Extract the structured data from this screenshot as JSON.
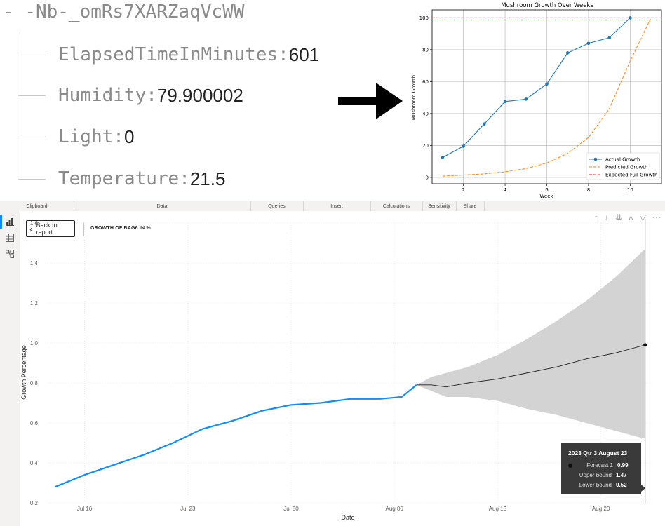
{
  "tree": {
    "root_key": "-Nb-_omRs7XARZaqVcWW",
    "rows": [
      {
        "key": "ElapsedTimeInMinutes",
        "value": "601"
      },
      {
        "key": "Humidity",
        "value": "79.900002"
      },
      {
        "key": "Light",
        "value": "0"
      },
      {
        "key": "Temperature",
        "value": "21.5"
      }
    ]
  },
  "ribbon": {
    "groups": [
      "Clipboard",
      "Data",
      "Queries",
      "Insert",
      "Calculations",
      "Sensitivity",
      "Share"
    ]
  },
  "report": {
    "back_label": "Back to report",
    "visual_title": "GROWTH OF BAG6 IN %",
    "tooltip": {
      "title": "2023 Qtr 3 August 23",
      "rows": [
        {
          "label": "Forecast 1",
          "value": "0.99"
        },
        {
          "label": "Upper bound",
          "value": "1.47"
        },
        {
          "label": "Lower bound",
          "value": "0.52"
        }
      ]
    }
  },
  "colors": {
    "actual_line": "#1f77b4",
    "predicted_line": "#ff7f0e",
    "expected_line": "#d62728",
    "pbi_line": "#118dff",
    "forecast_band": "#d3d3d3"
  },
  "chart_data": [
    {
      "type": "line",
      "title": "Mushroom Growth Over Weeks",
      "xlabel": "Week",
      "ylabel": "Mushroom Growth",
      "xlim": [
        0.5,
        11.5
      ],
      "ylim": [
        -4,
        105
      ],
      "xticks": [
        2,
        4,
        6,
        8,
        10
      ],
      "yticks": [
        0,
        20,
        40,
        60,
        80,
        100
      ],
      "grid": true,
      "legend": "bottom-right",
      "series": [
        {
          "name": "Actual Growth",
          "style": "solid-markers",
          "x": [
            1,
            2,
            3,
            4,
            5,
            6,
            7,
            8,
            9,
            10
          ],
          "y": [
            12.5,
            19.5,
            33.5,
            47.5,
            49,
            58.5,
            78,
            84,
            87.5,
            100
          ]
        },
        {
          "name": "Predicted Growth",
          "style": "dashed",
          "x": [
            1,
            2,
            3,
            4,
            5,
            6,
            7,
            8,
            9,
            10,
            11
          ],
          "y": [
            0.8,
            1.5,
            2.2,
            3.5,
            5.5,
            9,
            15,
            25,
            43,
            73,
            100
          ]
        },
        {
          "name": "Expected Full Growth",
          "style": "dashed-horizontal",
          "y": 100
        }
      ]
    },
    {
      "type": "line",
      "title": "GROWTH OF BAG6 IN %",
      "xlabel": "Date",
      "ylabel": "Growth Percentage",
      "ylim": [
        0.2,
        1.6
      ],
      "yticks": [
        0.2,
        0.4,
        0.6,
        0.8,
        1.0,
        1.2,
        1.4,
        1.6
      ],
      "xticks": [
        {
          "day": 2,
          "label": "Jul 16"
        },
        {
          "day": 9,
          "label": "Jul 23"
        },
        {
          "day": 16,
          "label": "Jul 30"
        },
        {
          "day": 23,
          "label": "Aug 06"
        },
        {
          "day": 30,
          "label": "Aug 13"
        },
        {
          "day": 37,
          "label": "Aug 20"
        }
      ],
      "xlim": [
        -0.5,
        40.3
      ],
      "actual": {
        "day": [
          0,
          2,
          4,
          6,
          8,
          10,
          12,
          14,
          16,
          18,
          20,
          22,
          23.5,
          24.5
        ],
        "y": [
          0.28,
          0.34,
          0.39,
          0.44,
          0.5,
          0.57,
          0.61,
          0.66,
          0.69,
          0.7,
          0.72,
          0.72,
          0.73,
          0.79
        ]
      },
      "forecast": {
        "day": [
          24.5,
          25.5,
          26.5,
          28,
          30,
          32,
          34,
          36,
          38,
          40
        ],
        "y": [
          0.79,
          0.79,
          0.78,
          0.8,
          0.82,
          0.85,
          0.88,
          0.92,
          0.95,
          0.99
        ],
        "upper": [
          0.79,
          0.83,
          0.85,
          0.88,
          0.94,
          1.02,
          1.11,
          1.21,
          1.33,
          1.47
        ],
        "lower": [
          0.79,
          0.76,
          0.73,
          0.73,
          0.71,
          0.67,
          0.64,
          0.6,
          0.56,
          0.52
        ]
      }
    }
  ]
}
